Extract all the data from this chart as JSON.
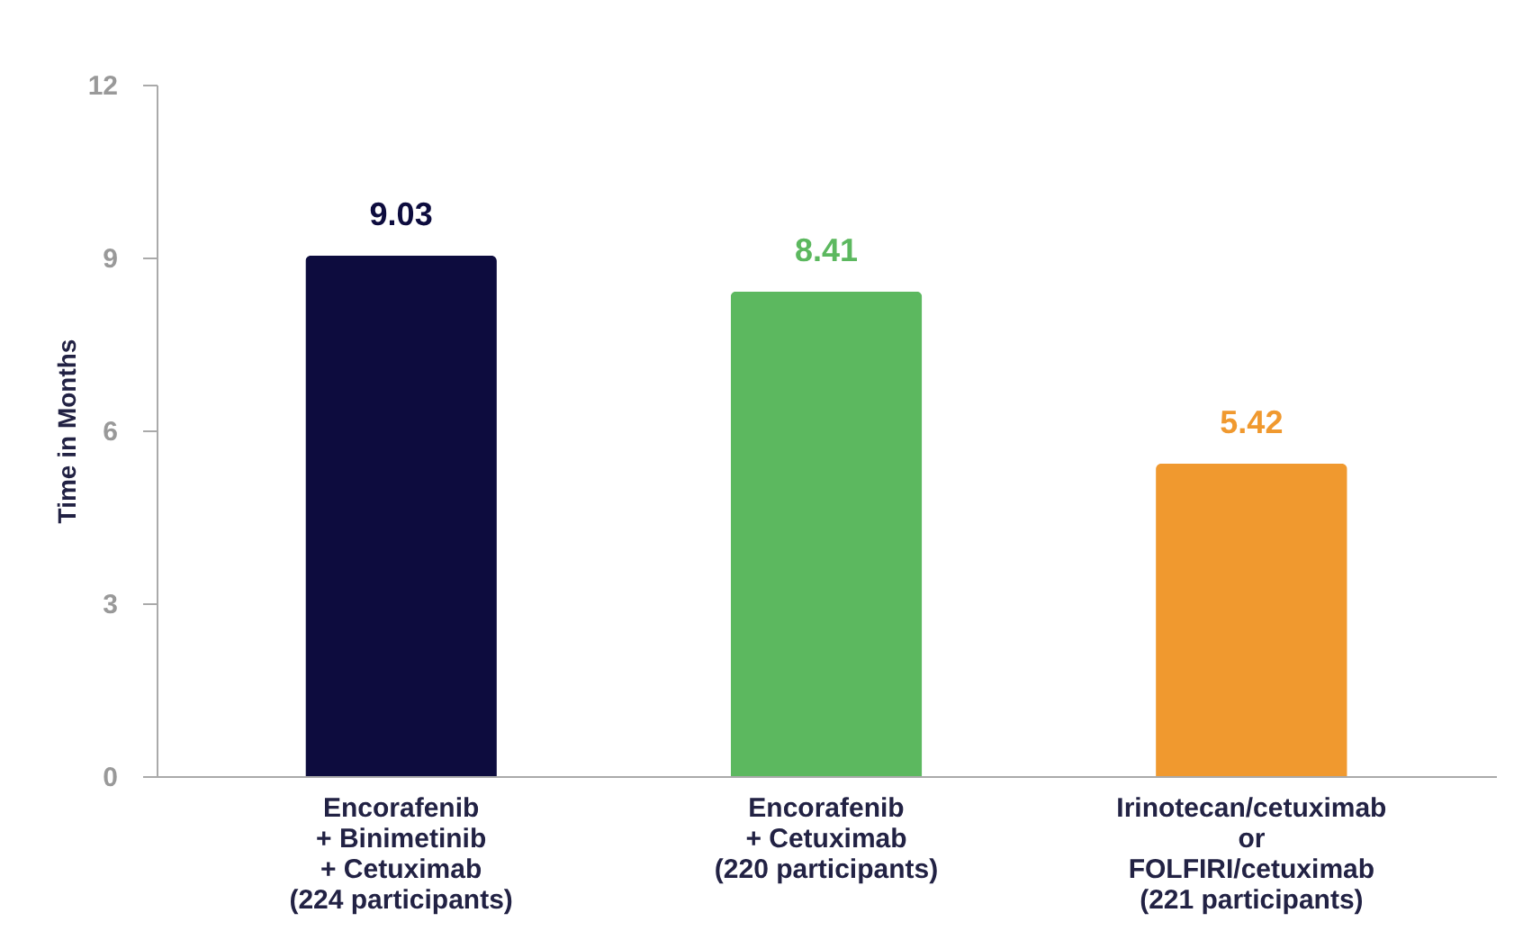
{
  "chart_data": {
    "type": "bar",
    "ylabel": "Time in Months",
    "categories": [
      "Encorafenib\n+ Binimetinib\n+ Cetuximab\n(224 participants)",
      "Encorafenib\n+ Cetuximab\n(220 participants)",
      "Irinotecan/cetuximab\nor\nFOLFIRI/cetuximab\n(221 participants)"
    ],
    "values": [
      9.03,
      8.41,
      5.42
    ],
    "colors": [
      "#0d0c3e",
      "#5cb85f",
      "#f0992f"
    ],
    "ylim": [
      0,
      12
    ],
    "yticks": [
      0,
      3,
      6,
      9,
      12
    ],
    "grid": false,
    "data_labels": true
  }
}
